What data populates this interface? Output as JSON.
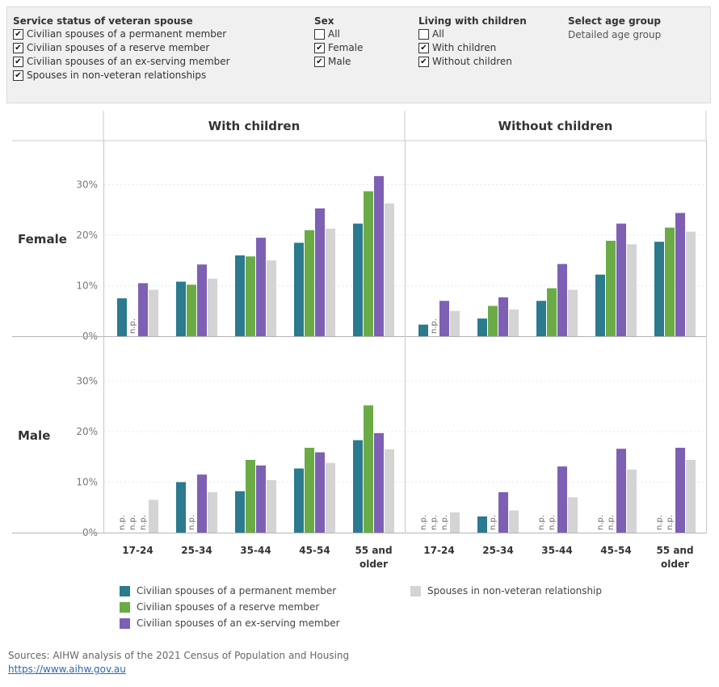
{
  "filters": {
    "service_status": {
      "title": "Service status of veteran spouse",
      "options": [
        {
          "label": "Civilian spouses of a permanent member",
          "checked": true
        },
        {
          "label": "Civilian spouses of a reserve member",
          "checked": true
        },
        {
          "label": "Civilian spouses of an ex-serving member",
          "checked": true
        },
        {
          "label": "Spouses in non-veteran relationships",
          "checked": true
        }
      ]
    },
    "sex": {
      "title": "Sex",
      "options": [
        {
          "label": "All",
          "checked": false
        },
        {
          "label": "Female",
          "checked": true
        },
        {
          "label": "Male",
          "checked": true
        }
      ]
    },
    "children": {
      "title": "Living with children",
      "options": [
        {
          "label": "All",
          "checked": false
        },
        {
          "label": "With children",
          "checked": true
        },
        {
          "label": "Without children",
          "checked": true
        }
      ]
    },
    "age": {
      "title": "Select age group",
      "value": "Detailed age group"
    }
  },
  "check_glyph": "✔",
  "chart_data": {
    "type": "bar",
    "columns": [
      "With children",
      "Without children"
    ],
    "rows": [
      "Female",
      "Male"
    ],
    "categories": [
      "17-24",
      "25-34",
      "35-44",
      "45-54",
      "55 and older"
    ],
    "category_lines": [
      [
        "17-24"
      ],
      [
        "25-34"
      ],
      [
        "35-44"
      ],
      [
        "45-54"
      ],
      [
        "55 and",
        "older"
      ]
    ],
    "y_ticks": [
      "0%",
      "10%",
      "20%",
      "30%"
    ],
    "ylim": [
      0,
      38
    ],
    "na_label": "n.p.",
    "series": [
      {
        "name": "Civilian spouses of a permanent member",
        "color": "#2b7a8e"
      },
      {
        "name": "Civilian spouses of a reserve member",
        "color": "#6aab46"
      },
      {
        "name": "Civilian spouses of an ex-serving member",
        "color": "#7d60b4"
      },
      {
        "name": "Spouses in non-veteran relationship",
        "color": "#d4d4d4"
      }
    ],
    "panels": [
      {
        "row": "Female",
        "column": "With children",
        "values": [
          [
            7.5,
            null,
            10.5,
            9.2
          ],
          [
            10.8,
            10.2,
            14.2,
            11.4
          ],
          [
            16.0,
            15.8,
            19.5,
            15.0
          ],
          [
            18.5,
            21.0,
            25.3,
            21.3
          ],
          [
            22.3,
            28.7,
            31.7,
            26.3
          ]
        ]
      },
      {
        "row": "Female",
        "column": "Without children",
        "values": [
          [
            2.3,
            null,
            7.0,
            5.0
          ],
          [
            3.5,
            6.0,
            7.7,
            5.3
          ],
          [
            7.0,
            9.5,
            14.3,
            9.2
          ],
          [
            12.2,
            18.9,
            22.3,
            18.2
          ],
          [
            18.7,
            21.5,
            24.4,
            20.7
          ]
        ]
      },
      {
        "row": "Male",
        "column": "With children",
        "values": [
          [
            null,
            null,
            null,
            6.5
          ],
          [
            10.0,
            null,
            11.5,
            8.0
          ],
          [
            8.2,
            14.4,
            13.3,
            10.4
          ],
          [
            12.7,
            16.8,
            15.9,
            13.8
          ],
          [
            18.3,
            25.2,
            19.7,
            16.5
          ]
        ]
      },
      {
        "row": "Male",
        "column": "Without children",
        "values": [
          [
            null,
            null,
            null,
            4.0
          ],
          [
            3.2,
            null,
            8.0,
            4.4
          ],
          [
            null,
            null,
            13.1,
            7.0
          ],
          [
            null,
            null,
            16.6,
            12.5
          ],
          [
            null,
            null,
            16.8,
            14.4
          ]
        ]
      }
    ]
  },
  "footer": {
    "source": "Sources: AIHW analysis of the 2021 Census of Population and Housing",
    "link": "https://www.aihw.gov.au"
  }
}
